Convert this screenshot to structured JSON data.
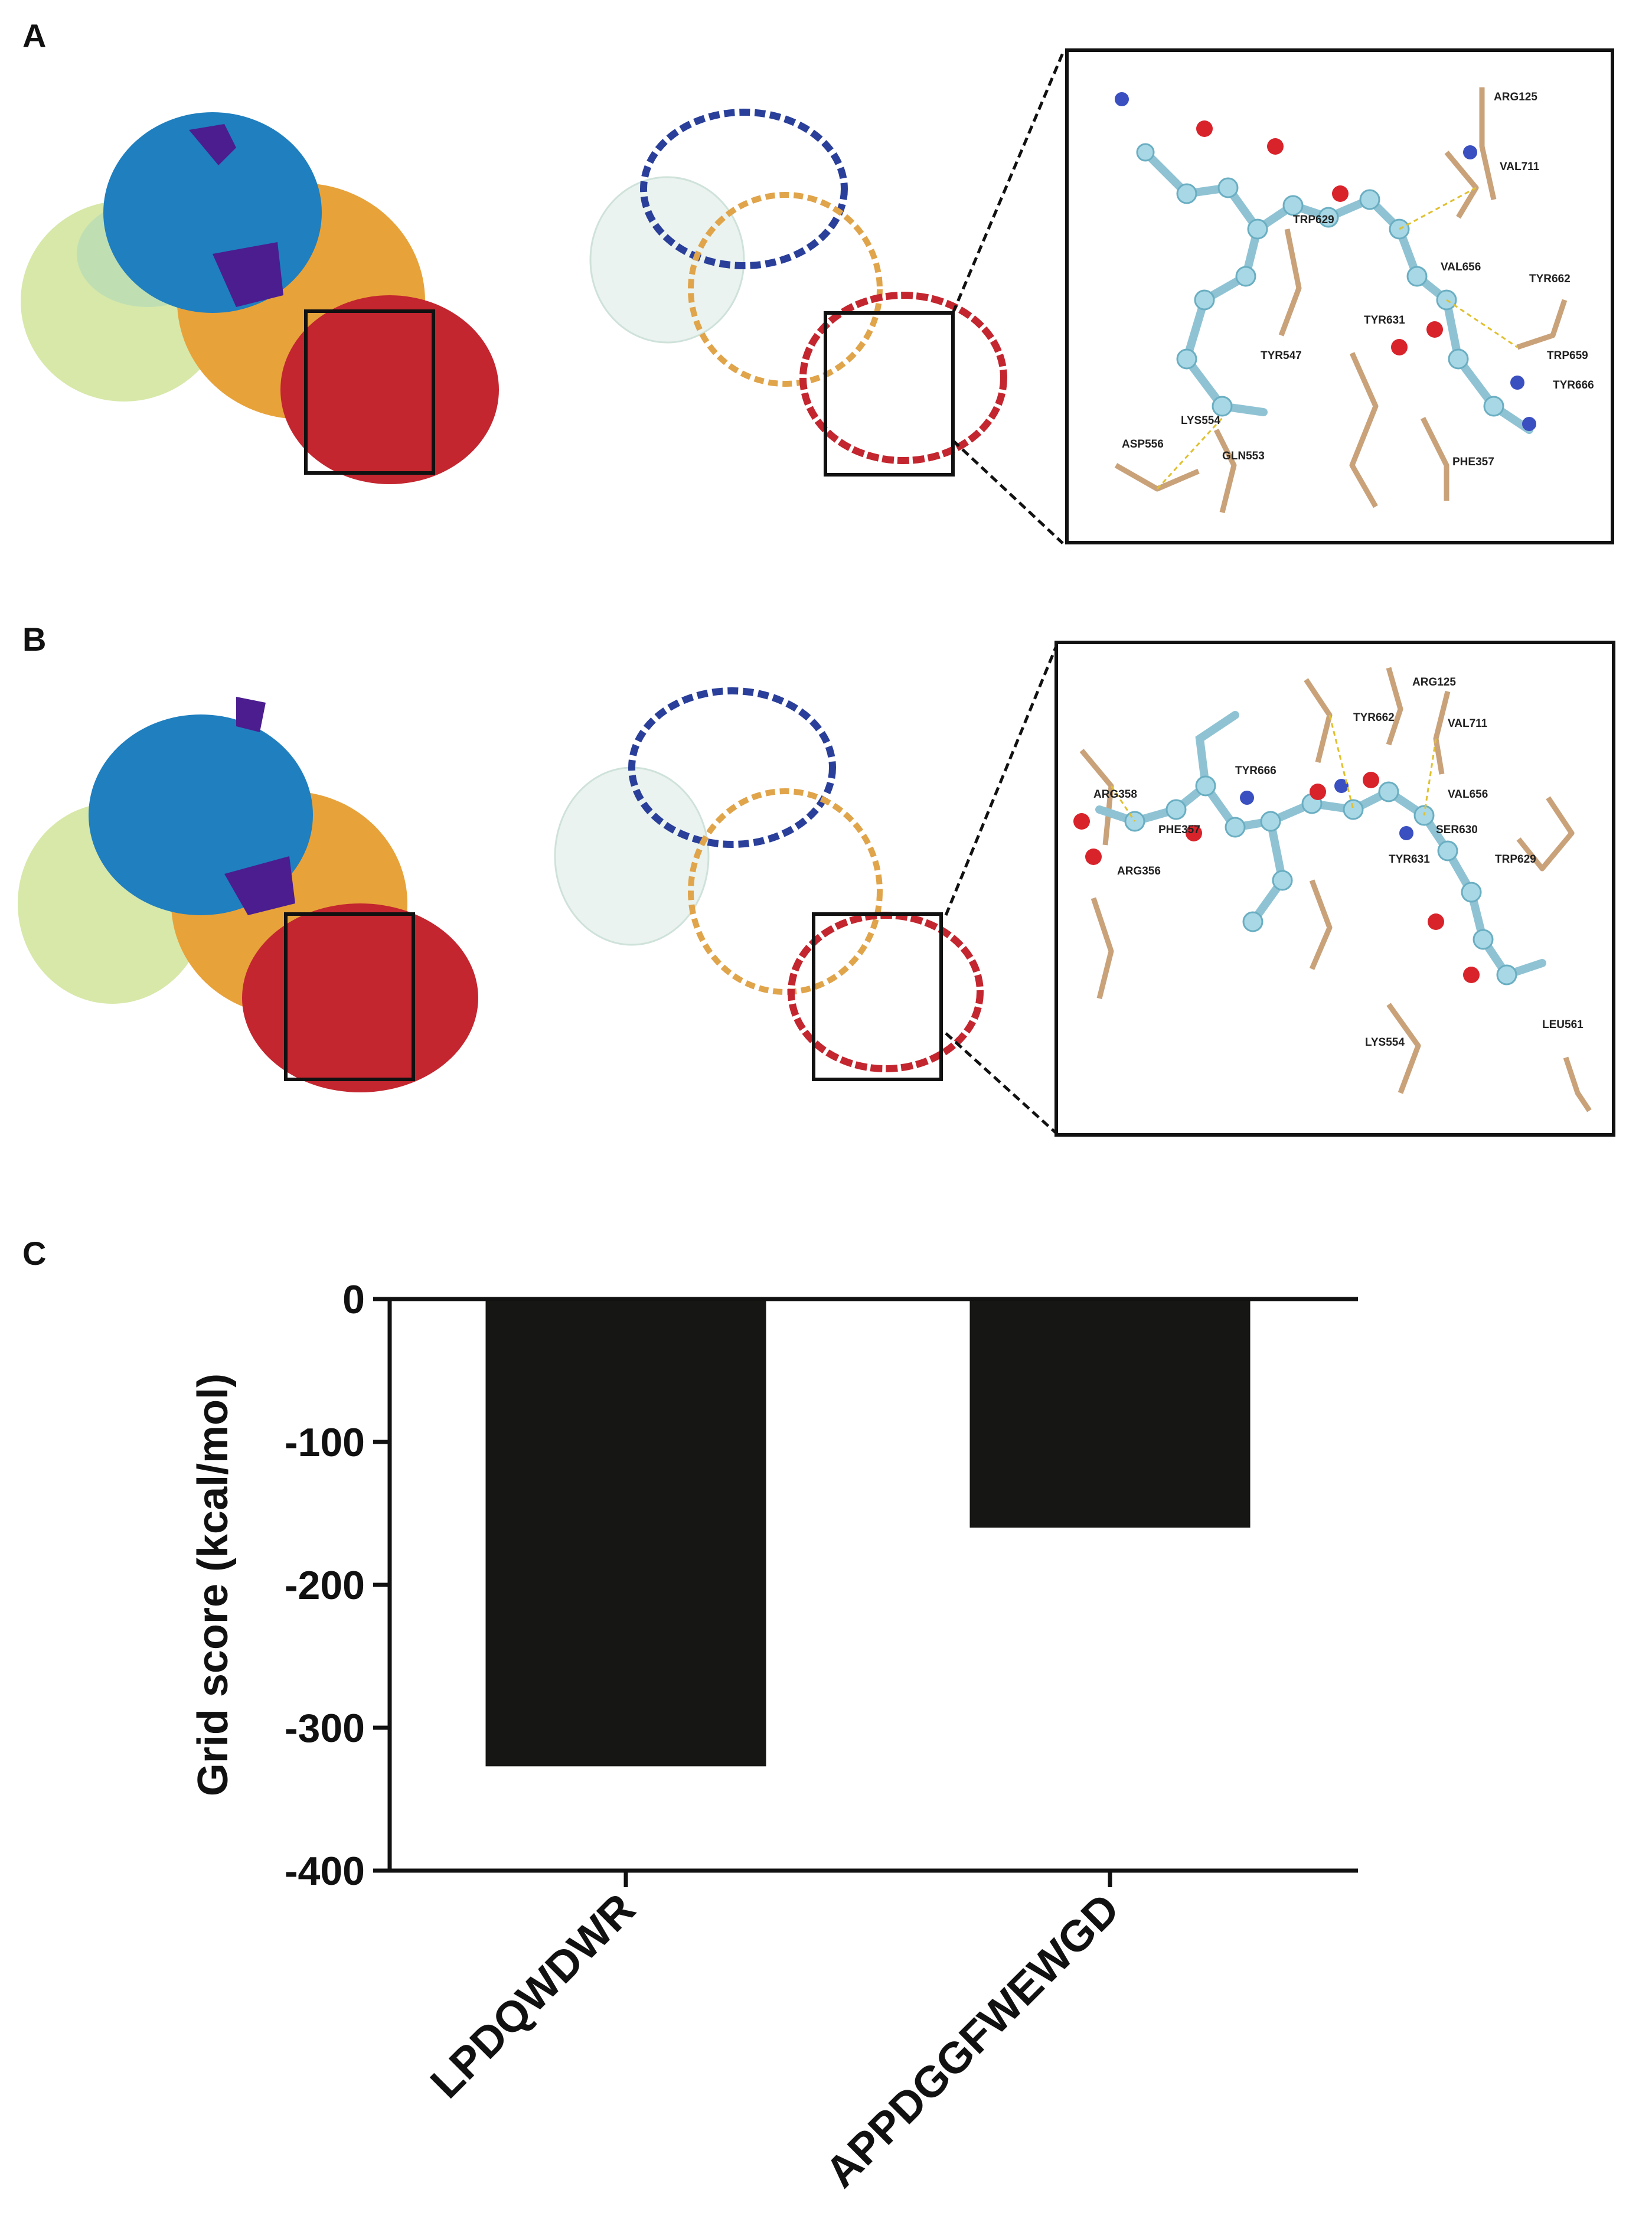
{
  "panels": {
    "a": "A",
    "b": "B",
    "c": "C"
  },
  "inset_a_labels": [
    "ARG125",
    "VAL711",
    "TRP629",
    "VAL656",
    "TYR662",
    "TYR631",
    "TYR547",
    "TRP659",
    "TYR666",
    "LYS554",
    "ASP556",
    "GLN553",
    "PHE357"
  ],
  "inset_b_labels": [
    "ARG125",
    "TYR662",
    "VAL711",
    "TYR666",
    "VAL656",
    "ARG358",
    "PHE357",
    "SER630",
    "TYR631",
    "TRP629",
    "ARG356",
    "LYS554",
    "LEU561"
  ],
  "colors": {
    "chain_blue": "#1f7fbf",
    "chain_purple": "#4b1d8f",
    "chain_orange": "#e8a23a",
    "chain_green": "#cfe39a",
    "chain_red": "#c3262f",
    "ligand": "#9fd3e0",
    "residue": "#c9a27a",
    "bar": "#161614"
  },
  "chart_data": {
    "type": "bar",
    "categories": [
      "LPDQWDWR",
      "APPDGGFWEWGD"
    ],
    "values": [
      -327,
      -160
    ],
    "title": "",
    "xlabel": "",
    "ylabel": "Grid score (kcal/mol)",
    "ylim": [
      -400,
      0
    ],
    "yticks": [
      0,
      -100,
      -200,
      -300,
      -400
    ],
    "bar_color": "#161614",
    "grid": false,
    "legend": "none"
  }
}
